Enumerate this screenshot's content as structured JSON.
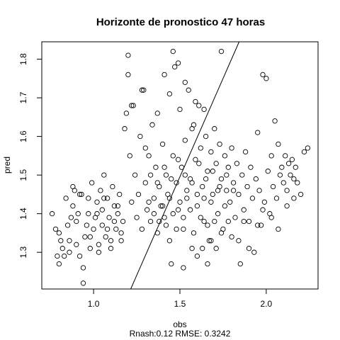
{
  "chart_data": {
    "type": "scatter",
    "title": "Horizonte de pronostico 47 horas",
    "xlabel": "obs",
    "ylabel": "pred",
    "subtitle": "Rnash:0.12 RMSE: 0.3242",
    "xlim": [
      0.7,
      2.3
    ],
    "ylim": [
      1.205,
      1.845
    ],
    "x_ticks": [
      1.0,
      1.5,
      2.0
    ],
    "y_ticks": [
      1.3,
      1.4,
      1.5,
      1.6,
      1.7,
      1.8
    ],
    "fit_line": {
      "x": [
        1.215,
        1.843
      ],
      "y": [
        1.205,
        1.845
      ]
    },
    "grid": false,
    "points": [
      [
        0.76,
        1.4
      ],
      [
        0.78,
        1.36
      ],
      [
        0.79,
        1.29
      ],
      [
        0.8,
        1.27
      ],
      [
        0.8,
        1.35
      ],
      [
        0.82,
        1.31
      ],
      [
        0.83,
        1.29
      ],
      [
        0.84,
        1.44
      ],
      [
        0.85,
        1.37
      ],
      [
        0.86,
        1.33
      ],
      [
        0.86,
        1.3
      ],
      [
        0.88,
        1.42
      ],
      [
        0.88,
        1.47
      ],
      [
        0.89,
        1.46
      ],
      [
        0.9,
        1.38
      ],
      [
        0.9,
        1.32
      ],
      [
        0.91,
        1.4
      ],
      [
        0.92,
        1.29
      ],
      [
        0.93,
        1.45
      ],
      [
        0.94,
        1.26
      ],
      [
        0.94,
        1.22
      ],
      [
        0.95,
        1.34
      ],
      [
        0.96,
        1.37
      ],
      [
        0.97,
        1.4
      ],
      [
        0.97,
        1.44
      ],
      [
        0.98,
        1.31
      ],
      [
        0.99,
        1.48
      ],
      [
        1.0,
        1.36
      ],
      [
        1.01,
        1.39
      ],
      [
        1.02,
        1.43
      ],
      [
        1.03,
        1.32
      ],
      [
        1.04,
        1.46
      ],
      [
        1.05,
        1.41
      ],
      [
        1.05,
        1.37
      ],
      [
        1.06,
        1.5
      ],
      [
        1.07,
        1.34
      ],
      [
        1.08,
        1.44
      ],
      [
        1.09,
        1.39
      ],
      [
        1.1,
        1.31
      ],
      [
        1.11,
        1.47
      ],
      [
        1.12,
        1.42
      ],
      [
        1.13,
        1.36
      ],
      [
        1.14,
        1.4
      ],
      [
        1.15,
        1.45
      ],
      [
        1.16,
        1.33
      ],
      [
        1.17,
        1.38
      ],
      [
        1.18,
        1.62
      ],
      [
        1.19,
        1.66
      ],
      [
        1.2,
        1.76
      ],
      [
        1.21,
        1.55
      ],
      [
        1.22,
        1.43
      ],
      [
        1.23,
        1.68
      ],
      [
        1.24,
        1.5
      ],
      [
        1.25,
        1.39
      ],
      [
        1.26,
        1.45
      ],
      [
        1.27,
        1.6
      ],
      [
        1.28,
        1.36
      ],
      [
        1.29,
        1.72
      ],
      [
        1.3,
        1.48
      ],
      [
        1.31,
        1.41
      ],
      [
        1.32,
        1.55
      ],
      [
        1.33,
        1.38
      ],
      [
        1.34,
        1.63
      ],
      [
        1.35,
        1.44
      ],
      [
        1.36,
        1.52
      ],
      [
        1.37,
        1.35
      ],
      [
        1.38,
        1.47
      ],
      [
        1.39,
        1.42
      ],
      [
        1.4,
        1.58
      ],
      [
        1.41,
        1.39
      ],
      [
        1.42,
        1.5
      ],
      [
        1.43,
        1.45
      ],
      [
        1.44,
        1.33
      ],
      [
        1.45,
        1.27
      ],
      [
        1.46,
        1.55
      ],
      [
        1.47,
        1.78
      ],
      [
        1.48,
        1.48
      ],
      [
        1.49,
        1.41
      ],
      [
        1.5,
        1.67
      ],
      [
        1.51,
        1.52
      ],
      [
        1.52,
        1.36
      ],
      [
        1.53,
        1.59
      ],
      [
        1.54,
        1.44
      ],
      [
        1.55,
        1.72
      ],
      [
        1.56,
        1.49
      ],
      [
        1.57,
        1.31
      ],
      [
        1.58,
        1.63
      ],
      [
        1.59,
        1.54
      ],
      [
        1.6,
        1.42
      ],
      [
        1.61,
        1.68
      ],
      [
        1.62,
        1.57
      ],
      [
        1.63,
        1.47
      ],
      [
        1.64,
        1.38
      ],
      [
        1.65,
        1.6
      ],
      [
        1.66,
        1.51
      ],
      [
        1.67,
        1.33
      ],
      [
        1.68,
        1.56
      ],
      [
        1.69,
        1.45
      ],
      [
        1.7,
        1.62
      ],
      [
        1.71,
        1.53
      ],
      [
        1.72,
        1.4
      ],
      [
        1.73,
        1.58
      ],
      [
        1.74,
        1.49
      ],
      [
        1.75,
        1.36
      ],
      [
        1.76,
        1.55
      ],
      [
        1.77,
        1.46
      ],
      [
        1.78,
        1.52
      ],
      [
        1.79,
        1.43
      ],
      [
        1.8,
        1.57
      ],
      [
        1.81,
        1.48
      ],
      [
        1.82,
        1.39
      ],
      [
        1.83,
        1.53
      ],
      [
        1.84,
        1.45
      ],
      [
        1.85,
        1.27
      ],
      [
        1.86,
        1.5
      ],
      [
        1.87,
        1.41
      ],
      [
        1.88,
        1.56
      ],
      [
        1.89,
        1.47
      ],
      [
        1.9,
        1.38
      ],
      [
        1.91,
        1.52
      ],
      [
        1.92,
        1.44
      ],
      [
        1.93,
        1.3
      ],
      [
        1.94,
        1.49
      ],
      [
        1.95,
        1.61
      ],
      [
        1.96,
        1.46
      ],
      [
        1.97,
        1.37
      ],
      [
        1.98,
        1.76
      ],
      [
        1.99,
        1.43
      ],
      [
        2.0,
        1.75
      ],
      [
        2.01,
        1.51
      ],
      [
        2.02,
        1.4
      ],
      [
        2.03,
        1.55
      ],
      [
        2.04,
        1.47
      ],
      [
        2.05,
        1.64
      ],
      [
        2.06,
        1.44
      ],
      [
        2.07,
        1.58
      ],
      [
        2.08,
        1.5
      ],
      [
        2.09,
        1.52
      ],
      [
        2.1,
        1.48
      ],
      [
        2.11,
        1.55
      ],
      [
        2.12,
        1.46
      ],
      [
        2.13,
        1.53
      ],
      [
        2.14,
        1.5
      ],
      [
        2.15,
        1.54
      ],
      [
        2.16,
        1.49
      ],
      [
        2.17,
        1.52
      ],
      [
        2.18,
        1.48
      ],
      [
        2.2,
        1.45
      ],
      [
        2.22,
        1.56
      ],
      [
        2.24,
        1.57
      ],
      [
        1.2,
        1.81
      ],
      [
        1.46,
        1.82
      ],
      [
        1.49,
        1.79
      ],
      [
        1.41,
        1.76
      ],
      [
        1.53,
        1.74
      ],
      [
        1.59,
        1.69
      ],
      [
        1.64,
        1.67
      ],
      [
        1.74,
        1.82
      ],
      [
        1.28,
        1.72
      ],
      [
        1.22,
        1.68
      ],
      [
        1.3,
        1.57
      ],
      [
        1.44,
        1.71
      ],
      [
        1.37,
        1.66
      ],
      [
        1.57,
        1.62
      ],
      [
        1.32,
        1.43
      ],
      [
        1.35,
        1.4
      ],
      [
        1.38,
        1.38
      ],
      [
        1.4,
        1.42
      ],
      [
        1.42,
        1.37
      ],
      [
        1.44,
        1.44
      ],
      [
        1.46,
        1.4
      ],
      [
        1.48,
        1.36
      ],
      [
        1.5,
        1.43
      ],
      [
        1.52,
        1.39
      ],
      [
        1.54,
        1.46
      ],
      [
        1.56,
        1.41
      ],
      [
        1.58,
        1.35
      ],
      [
        1.6,
        1.45
      ],
      [
        1.62,
        1.39
      ],
      [
        1.64,
        1.44
      ],
      [
        1.66,
        1.37
      ],
      [
        1.68,
        1.43
      ],
      [
        1.7,
        1.38
      ],
      [
        1.72,
        1.46
      ],
      [
        1.74,
        1.35
      ],
      [
        1.76,
        1.42
      ],
      [
        1.78,
        1.38
      ],
      [
        1.8,
        1.34
      ],
      [
        1.33,
        1.5
      ],
      [
        1.37,
        1.48
      ],
      [
        1.41,
        1.52
      ],
      [
        1.45,
        1.49
      ],
      [
        1.49,
        1.54
      ],
      [
        1.53,
        1.5
      ],
      [
        1.57,
        1.48
      ],
      [
        1.61,
        1.53
      ],
      [
        1.65,
        1.49
      ],
      [
        1.69,
        1.51
      ],
      [
        1.73,
        1.47
      ],
      [
        1.77,
        1.5
      ],
      [
        1.81,
        1.46
      ],
      [
        0.92,
        1.45
      ],
      [
        1.02,
        1.4
      ],
      [
        1.08,
        1.36
      ],
      [
        1.14,
        1.42
      ],
      [
        0.87,
        1.39
      ],
      [
        0.98,
        1.34
      ],
      [
        1.06,
        1.44
      ],
      [
        1.12,
        1.38
      ],
      [
        1.16,
        1.35
      ],
      [
        0.81,
        1.33
      ],
      [
        1.03,
        1.3
      ],
      [
        1.1,
        1.33
      ],
      [
        1.6,
        1.29
      ],
      [
        1.66,
        1.27
      ],
      [
        1.71,
        1.31
      ],
      [
        1.52,
        1.26
      ],
      [
        1.63,
        1.31
      ],
      [
        1.68,
        1.33
      ],
      [
        1.84,
        1.33
      ],
      [
        1.9,
        1.31
      ],
      [
        1.95,
        1.37
      ],
      [
        1.87,
        1.38
      ],
      [
        1.98,
        1.41
      ],
      [
        2.03,
        1.39
      ],
      [
        2.07,
        1.36
      ],
      [
        2.12,
        1.42
      ],
      [
        2.16,
        1.44
      ]
    ]
  }
}
